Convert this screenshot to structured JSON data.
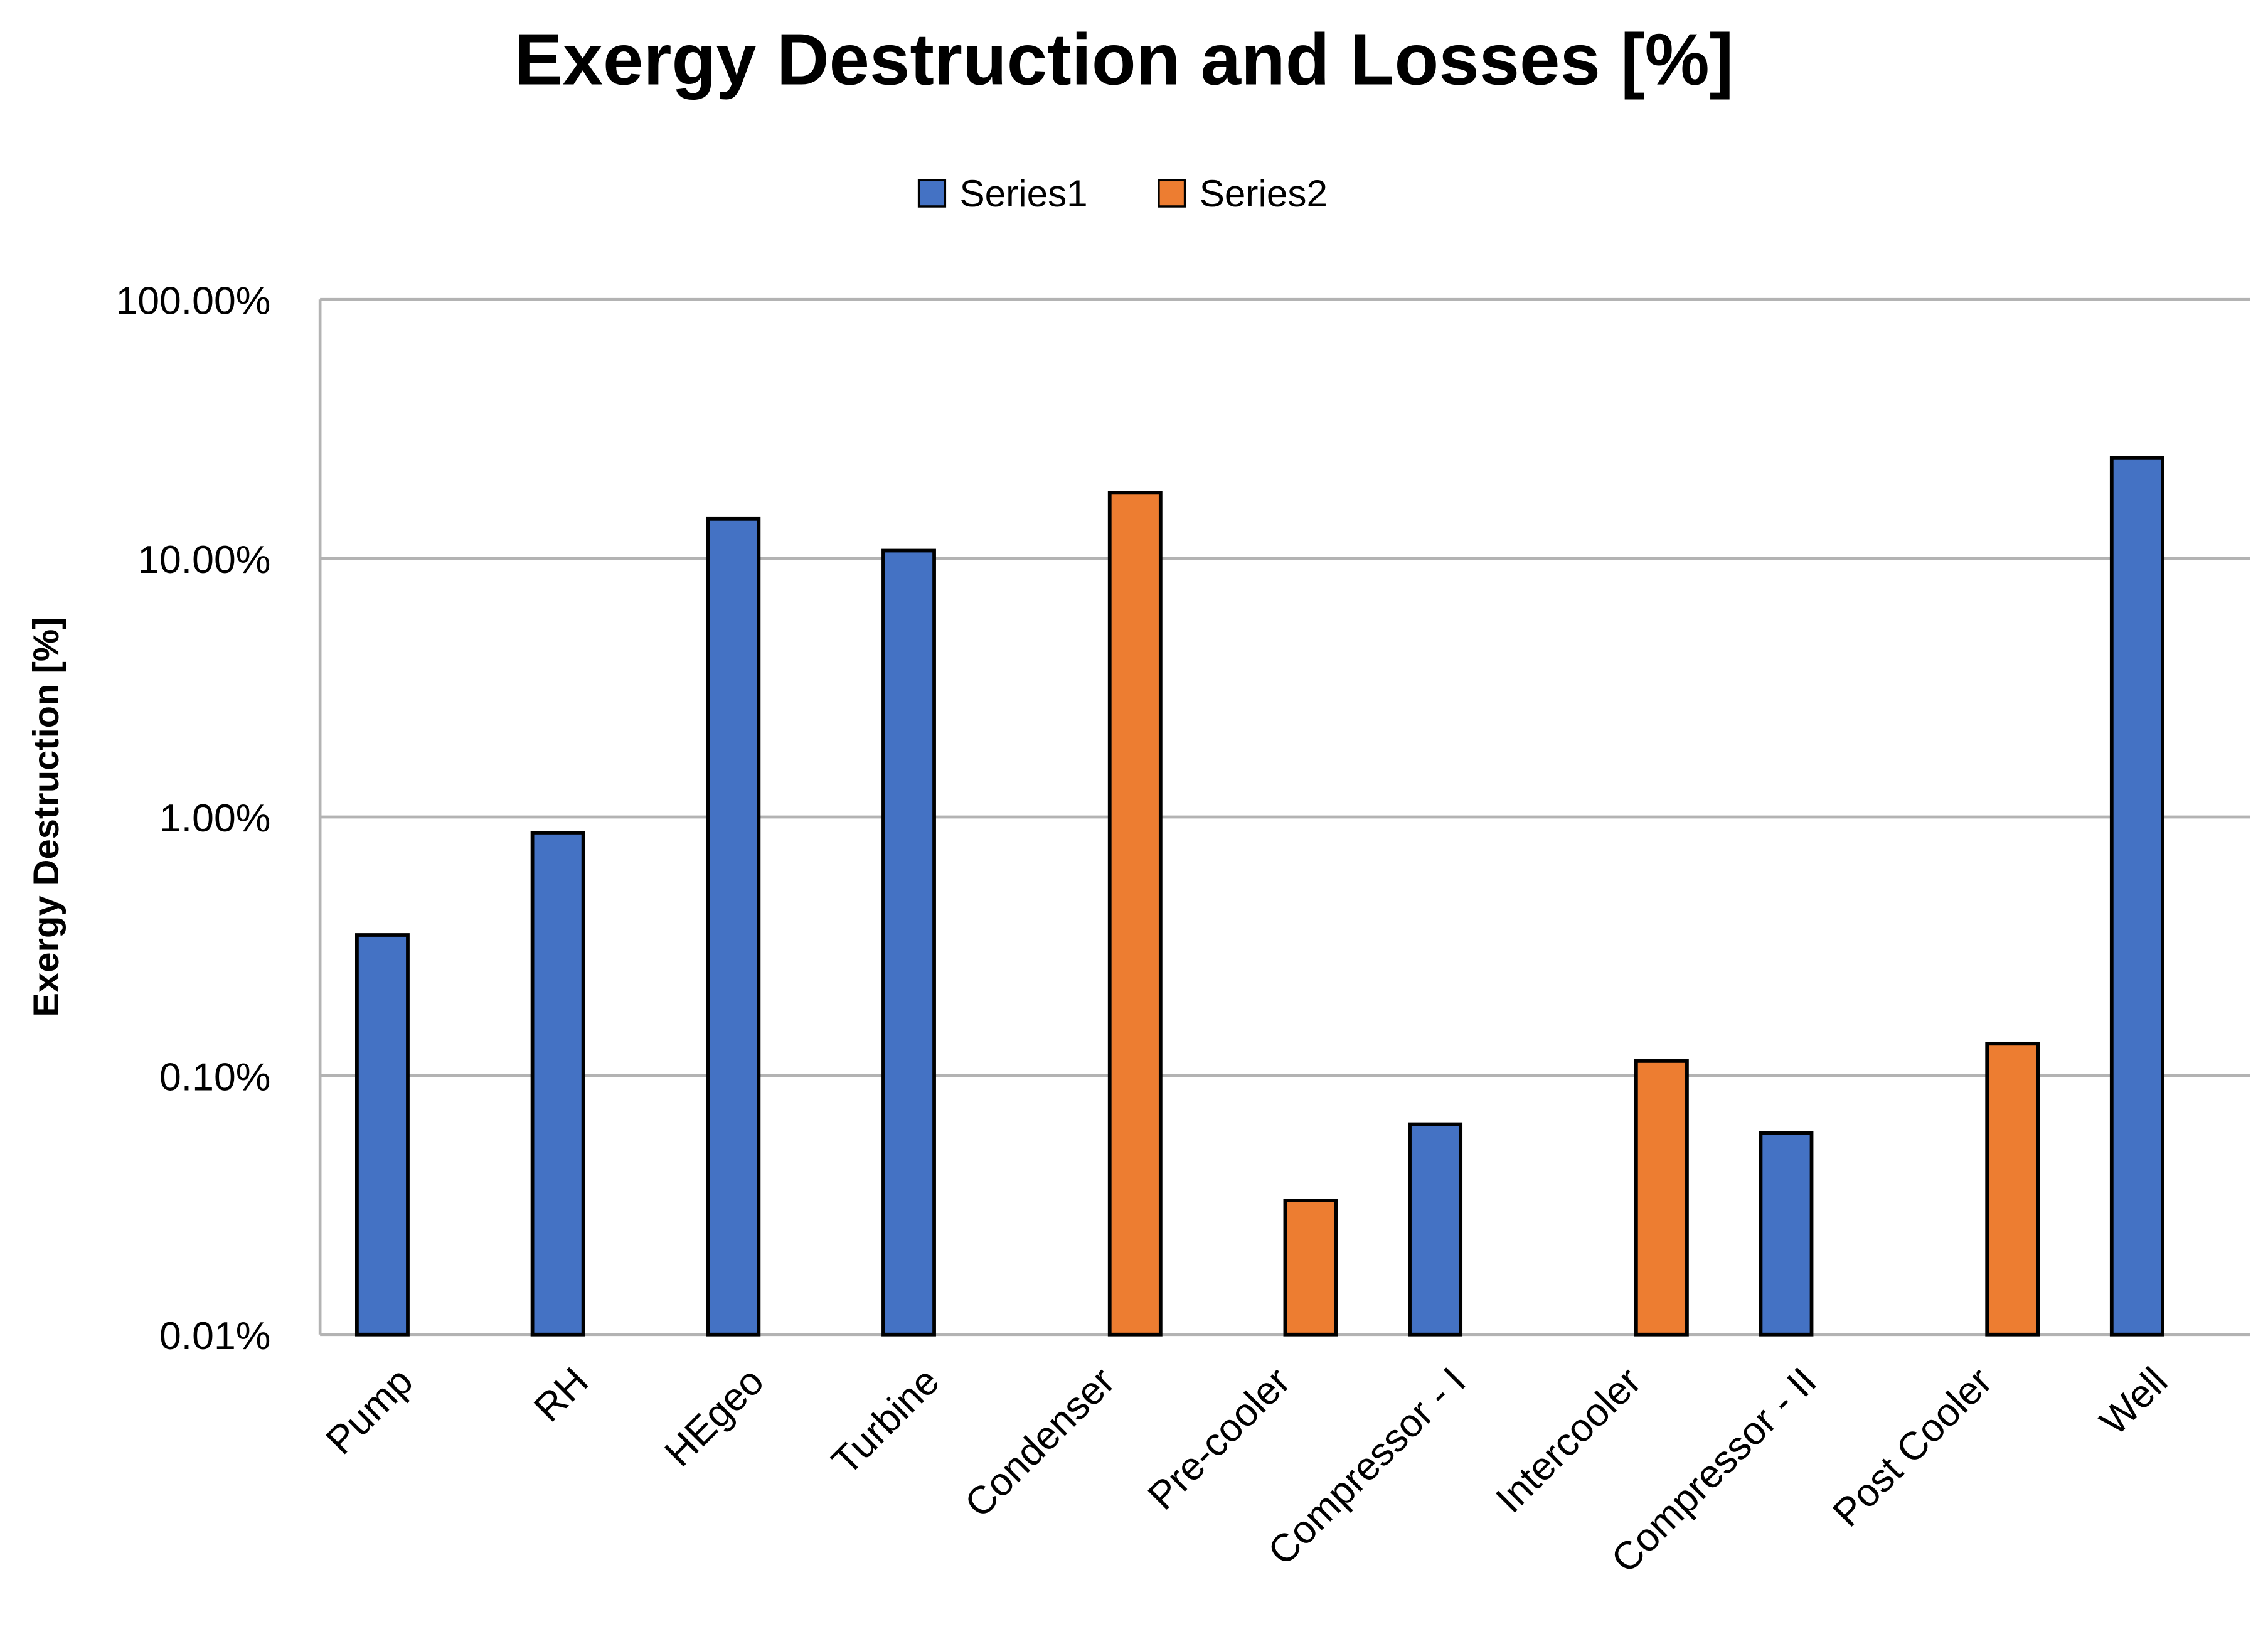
{
  "chart_data": {
    "type": "bar",
    "title": "Exergy Destruction and Losses [%]",
    "xlabel": "",
    "ylabel": "Exergy Destruction [%]",
    "yscale": "log",
    "ylim": [
      0.0001,
      1
    ],
    "yticks": [
      "0.01%",
      "0.10%",
      "1.00%",
      "10.00%",
      "100.00%"
    ],
    "grid": true,
    "legend": "top",
    "categories": [
      "Pump",
      "RH",
      "HEgeo",
      "Turbine",
      "Condenser",
      "Pre-cooler",
      "Compressor - I",
      "Intercooler",
      "Compressor - II",
      "Post Cooler",
      "Well"
    ],
    "series": [
      {
        "name": "Series1",
        "color": "#4472C4",
        "values": [
          0.0035,
          0.0087,
          0.142,
          0.107,
          null,
          null,
          0.00065,
          null,
          0.0006,
          null,
          0.244
        ]
      },
      {
        "name": "Series2",
        "color": "#ED7D31",
        "values": [
          null,
          null,
          null,
          null,
          0.179,
          0.00033,
          null,
          0.00114,
          null,
          0.00133,
          null
        ]
      }
    ]
  }
}
